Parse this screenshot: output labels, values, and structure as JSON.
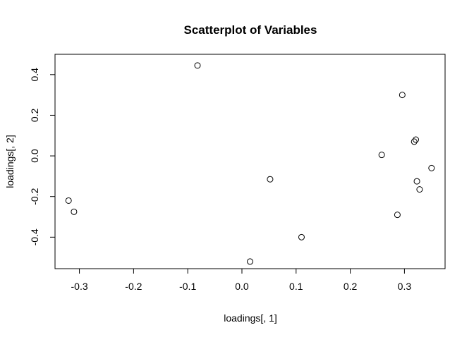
{
  "chart_data": {
    "type": "scatter",
    "title": "Scatterplot of Variables",
    "xlabel": "loadings[, 1]",
    "ylabel": "loadings[, 2]",
    "xlim": [
      -0.345,
      0.375
    ],
    "ylim": [
      -0.555,
      0.5
    ],
    "xticks": [
      -0.3,
      -0.2,
      -0.1,
      0.0,
      0.1,
      0.2,
      0.3
    ],
    "xtick_labels": [
      "-0.3",
      "-0.2",
      "-0.1",
      "0.0",
      "0.1",
      "0.2",
      "0.3"
    ],
    "yticks": [
      -0.4,
      -0.2,
      0.0,
      0.2,
      0.4
    ],
    "ytick_labels": [
      "-0.4",
      "-0.2",
      "0.0",
      "0.2",
      "0.4"
    ],
    "grid": false,
    "marker": "open-circle",
    "points": [
      {
        "x": -0.32,
        "y": -0.22
      },
      {
        "x": -0.31,
        "y": -0.275
      },
      {
        "x": -0.082,
        "y": 0.445
      },
      {
        "x": 0.015,
        "y": -0.52
      },
      {
        "x": 0.052,
        "y": -0.115
      },
      {
        "x": 0.11,
        "y": -0.4
      },
      {
        "x": 0.258,
        "y": 0.005
      },
      {
        "x": 0.287,
        "y": -0.29
      },
      {
        "x": 0.296,
        "y": 0.3
      },
      {
        "x": 0.318,
        "y": 0.07
      },
      {
        "x": 0.321,
        "y": 0.08
      },
      {
        "x": 0.323,
        "y": -0.125
      },
      {
        "x": 0.328,
        "y": -0.165
      },
      {
        "x": 0.35,
        "y": -0.06
      }
    ]
  }
}
